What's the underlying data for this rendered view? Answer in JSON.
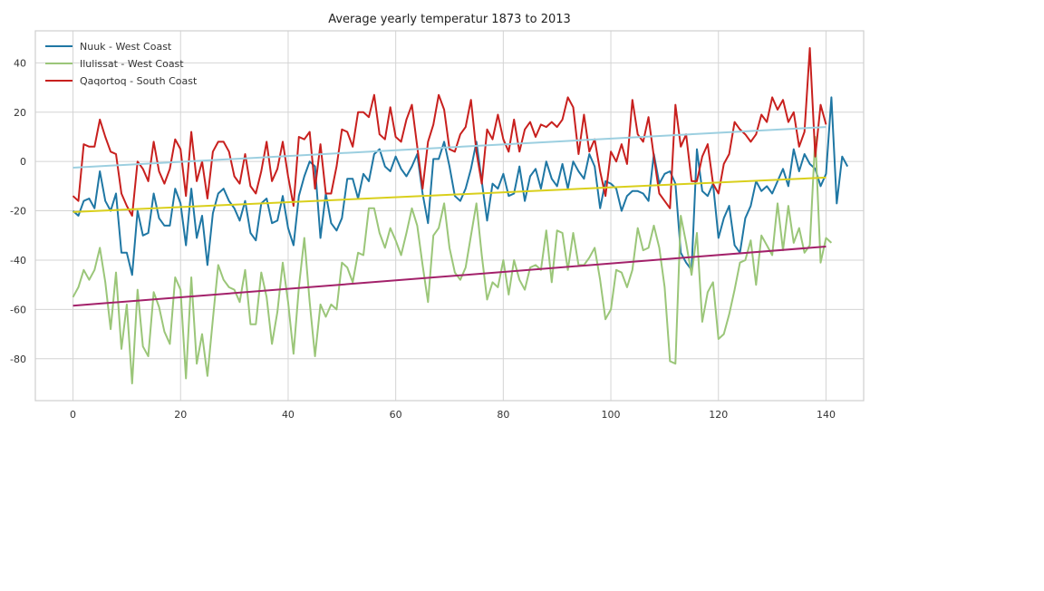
{
  "chart_data": {
    "type": "line",
    "title": "Average yearly temperatur 1873 to 2013",
    "xlabel": "",
    "ylabel": "",
    "xlim": [
      -7,
      147
    ],
    "ylim": [
      -97,
      53
    ],
    "xticks": [
      0,
      20,
      40,
      60,
      80,
      100,
      120,
      140
    ],
    "yticks": [
      -80,
      -60,
      -40,
      -20,
      0,
      20,
      40
    ],
    "grid": true,
    "legend_position": "top-left",
    "series": [
      {
        "name": "Nuuk - West Coast",
        "color": "#1f77a4",
        "values": [
          -20,
          -22,
          -16,
          -15,
          -19,
          -4,
          -16,
          -20,
          -13,
          -37,
          -37,
          -46,
          -20,
          -30,
          -29,
          -13,
          -23,
          -26,
          -26,
          -11,
          -17,
          -34,
          -11,
          -31,
          -22,
          -42,
          -21,
          -13,
          -11,
          -16,
          -19,
          -24,
          -16,
          -29,
          -32,
          -17,
          -15,
          -25,
          -24,
          -14,
          -27,
          -34,
          -14,
          -6,
          0,
          -2,
          -31,
          -13,
          -25,
          -28,
          -23,
          -7,
          -7,
          -15,
          -5,
          -8,
          3,
          5,
          -2,
          -4,
          2,
          -3,
          -6,
          -2,
          3,
          -13,
          -25,
          1,
          1,
          8,
          -2,
          -14,
          -16,
          -11,
          -3,
          8,
          -8,
          -24,
          -9,
          -11,
          -5,
          -14,
          -13,
          -2,
          -16,
          -6,
          -3,
          -11,
          0,
          -7,
          -10,
          -1,
          -11,
          0,
          -4,
          -7,
          3,
          -2,
          -19,
          -8,
          -9,
          -11,
          -20,
          -14,
          -12,
          -12,
          -13,
          -16,
          3,
          -9,
          -5,
          -4,
          -9,
          -37,
          -41,
          -44,
          5,
          -12,
          -14,
          -9,
          -31,
          -23,
          -18,
          -34,
          -37,
          -23,
          -18,
          -8,
          -12,
          -10,
          -13,
          -8,
          -3,
          -10,
          5,
          -4,
          3,
          -1,
          -3,
          -10,
          -5,
          26,
          -17,
          2,
          -2
        ]
      },
      {
        "name": "Ilulissat - West Coast",
        "color": "#9bc679",
        "values": [
          -55,
          -51,
          -44,
          -48,
          -44,
          -35,
          -49,
          -68,
          -45,
          -76,
          -58,
          -90,
          -52,
          -75,
          -79,
          -53,
          -59,
          -69,
          -74,
          -47,
          -52,
          -88,
          -47,
          -82,
          -70,
          -87,
          -64,
          -42,
          -48,
          -51,
          -52,
          -57,
          -44,
          -66,
          -66,
          -45,
          -55,
          -74,
          -61,
          -41,
          -57,
          -78,
          -51,
          -31,
          -57,
          -79,
          -58,
          -63,
          -58,
          -60,
          -41,
          -43,
          -49,
          -37,
          -38,
          -19,
          -19,
          -29,
          -35,
          -27,
          -32,
          -38,
          -29,
          -19,
          -26,
          -42,
          -57,
          -30,
          -27,
          -17,
          -35,
          -45,
          -48,
          -43,
          -30,
          -17,
          -38,
          -56,
          -49,
          -51,
          -40,
          -54,
          -40,
          -48,
          -52,
          -43,
          -42,
          -44,
          -28,
          -49,
          -28,
          -29,
          -44,
          -29,
          -42,
          -42,
          -39,
          -35,
          -48,
          -64,
          -60,
          -44,
          -45,
          -51,
          -44,
          -27,
          -36,
          -35,
          -26,
          -35,
          -51,
          -81,
          -82,
          -22,
          -33,
          -46,
          -29,
          -65,
          -53,
          -49,
          -72,
          -70,
          -62,
          -52,
          -41,
          -40,
          -32,
          -50,
          -30,
          -34,
          -38,
          -17,
          -36,
          -18,
          -33,
          -27,
          -37,
          -34,
          10,
          -41,
          -31,
          -33
        ]
      },
      {
        "name": "Qaqortoq - South Coast",
        "color": "#c8201e",
        "values": [
          -14,
          -16,
          7,
          6,
          6,
          17,
          10,
          4,
          3,
          -13,
          -18,
          -22,
          0,
          -3,
          -8,
          8,
          -4,
          -9,
          -3,
          9,
          5,
          -14,
          12,
          -8,
          0,
          -15,
          4,
          8,
          8,
          4,
          -6,
          -9,
          3,
          -10,
          -13,
          -4,
          8,
          -8,
          -3,
          8,
          -6,
          -18,
          10,
          9,
          12,
          -11,
          7,
          -13,
          -13,
          -2,
          13,
          12,
          6,
          20,
          20,
          18,
          27,
          11,
          9,
          22,
          10,
          8,
          17,
          23,
          6,
          -11,
          8,
          15,
          27,
          21,
          5,
          4,
          11,
          14,
          25,
          4,
          -9,
          13,
          9,
          19,
          9,
          4,
          17,
          4,
          13,
          16,
          10,
          15,
          14,
          16,
          14,
          17,
          26,
          22,
          3,
          19,
          4,
          9,
          -4,
          -14,
          4,
          0,
          7,
          -1,
          25,
          11,
          8,
          18,
          2,
          -13,
          -16,
          -19,
          23,
          6,
          11,
          -8,
          -8,
          2,
          7,
          -9,
          -13,
          -1,
          3,
          16,
          13,
          11,
          8,
          11,
          19,
          16,
          26,
          21,
          25,
          16,
          20,
          6,
          12,
          46,
          2,
          23,
          15
        ]
      }
    ],
    "trendlines": [
      {
        "series": "Nuuk - West Coast",
        "color": "#9ccfe0",
        "x": [
          0,
          140
        ],
        "y": [
          -2.5,
          14
        ]
      },
      {
        "series": "Ilulissat - West Coast",
        "color": "#d9cf1c",
        "x": [
          0,
          140
        ],
        "y": [
          -20.5,
          -6.5
        ]
      },
      {
        "series": "Qaqortoq - South Coast",
        "color": "#a3216a",
        "x": [
          0,
          140
        ],
        "y": [
          -58.5,
          -34.5
        ]
      }
    ]
  }
}
